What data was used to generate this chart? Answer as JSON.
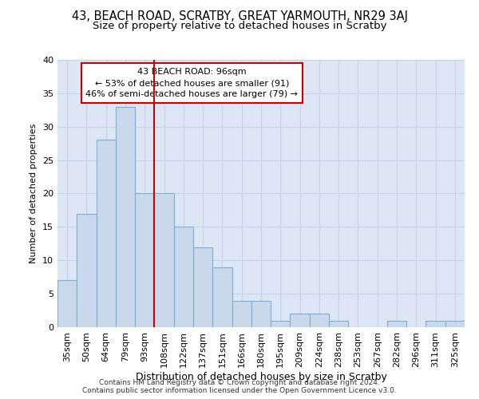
{
  "title": "43, BEACH ROAD, SCRATBY, GREAT YARMOUTH, NR29 3AJ",
  "subtitle": "Size of property relative to detached houses in Scratby",
  "xlabel": "Distribution of detached houses by size in Scratby",
  "ylabel": "Number of detached properties",
  "categories": [
    "35sqm",
    "50sqm",
    "64sqm",
    "79sqm",
    "93sqm",
    "108sqm",
    "122sqm",
    "137sqm",
    "151sqm",
    "166sqm",
    "180sqm",
    "195sqm",
    "209sqm",
    "224sqm",
    "238sqm",
    "253sqm",
    "267sqm",
    "282sqm",
    "296sqm",
    "311sqm",
    "325sqm"
  ],
  "values": [
    7,
    17,
    28,
    33,
    20,
    20,
    15,
    12,
    9,
    4,
    4,
    1,
    2,
    2,
    1,
    0,
    0,
    1,
    0,
    1,
    1
  ],
  "bar_color": "#c9d9eb",
  "bar_edge_color": "#7bafd4",
  "vline_x": 4.5,
  "vline_color": "#cc0000",
  "annotation_line1": "43 BEACH ROAD: 96sqm",
  "annotation_line2": "← 53% of detached houses are smaller (91)",
  "annotation_line3": "46% of semi-detached houses are larger (79) →",
  "annotation_box_color": "#ffffff",
  "annotation_box_edge_color": "#cc0000",
  "ylim": [
    0,
    40
  ],
  "yticks": [
    0,
    5,
    10,
    15,
    20,
    25,
    30,
    35,
    40
  ],
  "grid_color": "#c8d4e8",
  "background_color": "#dce6f5",
  "footer_text": "Contains HM Land Registry data © Crown copyright and database right 2024.\nContains public sector information licensed under the Open Government Licence v3.0.",
  "title_fontsize": 10.5,
  "subtitle_fontsize": 9.5,
  "xlabel_fontsize": 9,
  "ylabel_fontsize": 8,
  "tick_fontsize": 8,
  "annotation_fontsize": 8,
  "footer_fontsize": 6.5
}
